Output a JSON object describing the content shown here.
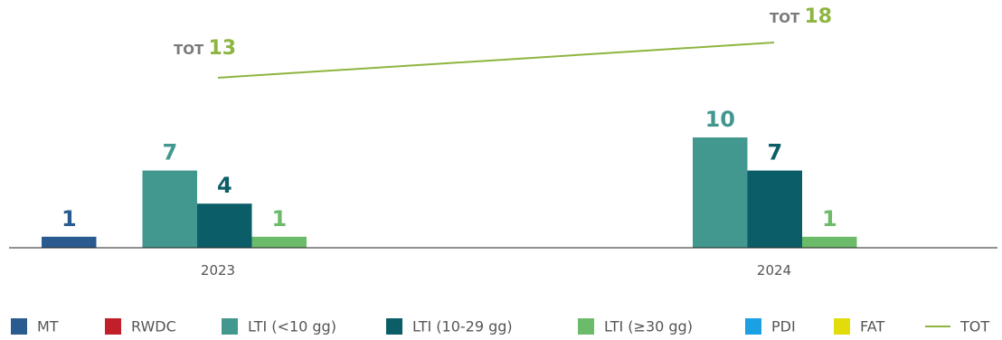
{
  "chart_data": {
    "type": "bar",
    "categories": [
      "2023",
      "2024"
    ],
    "series": [
      {
        "name": "MT",
        "color": "#2a5b90",
        "values": [
          1,
          0
        ]
      },
      {
        "name": "RWDC",
        "color": "#c11f2a",
        "values": [
          0,
          0
        ]
      },
      {
        "name": "LTI (<10 gg)",
        "color": "#42988f",
        "values": [
          7,
          10
        ]
      },
      {
        "name": "LTI (10-29 gg)",
        "color": "#0b5e67",
        "values": [
          4,
          7
        ]
      },
      {
        "name": "LTI (≥30 gg)",
        "color": "#6cbb6a",
        "values": [
          1,
          1
        ]
      },
      {
        "name": "PDI",
        "color": "#1aa0e3",
        "values": [
          0,
          0
        ]
      },
      {
        "name": "FAT",
        "color": "#e3dc0b",
        "values": [
          0,
          0
        ]
      }
    ],
    "line": {
      "name": "TOT",
      "color": "#8db53f",
      "values": [
        13,
        18
      ],
      "label_prefix": "TOT"
    },
    "label_colors": {
      "MT": "#2a5b90",
      "LTI (<10 gg)": "#42988f",
      "LTI (10-29 gg)": "#0b5e67",
      "LTI (≥30 gg)": "#6cbb6a"
    },
    "legend_position": "bottom",
    "grid": false
  }
}
